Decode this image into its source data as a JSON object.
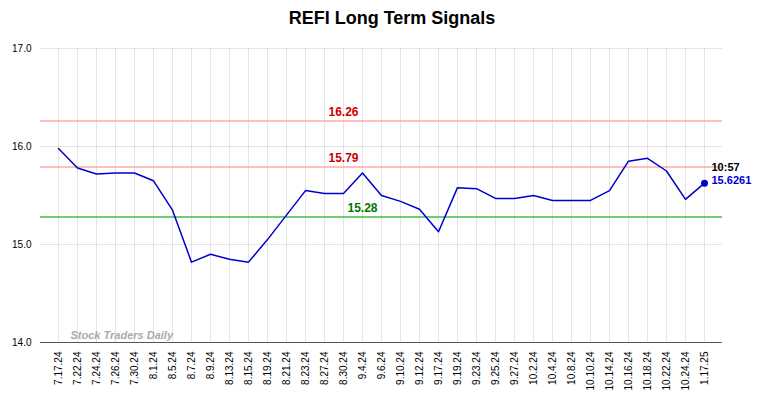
{
  "chart_data": {
    "type": "line",
    "title": "REFI Long Term Signals",
    "categories": [
      "7.17.24",
      "7.22.24",
      "7.24.24",
      "7.26.24",
      "7.30.24",
      "8.1.24",
      "8.5.24",
      "8.7.24",
      "8.9.24",
      "8.13.24",
      "8.15.24",
      "8.19.24",
      "8.21.24",
      "8.23.24",
      "8.27.24",
      "8.30.24",
      "9.4.24",
      "9.6.24",
      "9.10.24",
      "9.12.24",
      "9.17.24",
      "9.19.24",
      "9.23.24",
      "9.25.24",
      "9.27.24",
      "10.2.24",
      "10.4.24",
      "10.8.24",
      "10.10.24",
      "10.14.24",
      "10.16.24",
      "10.18.24",
      "10.22.24",
      "10.24.24",
      "1.17.25"
    ],
    "values": [
      15.98,
      15.78,
      15.72,
      15.73,
      15.73,
      15.65,
      15.35,
      14.82,
      14.9,
      14.85,
      14.82,
      15.05,
      15.3,
      15.55,
      15.52,
      15.52,
      15.73,
      15.5,
      15.44,
      15.36,
      15.13,
      15.58,
      15.57,
      15.47,
      15.47,
      15.5,
      15.45,
      15.45,
      15.45,
      15.55,
      15.85,
      15.88,
      15.75,
      15.46,
      15.6261
    ],
    "color": "#0000cc",
    "last_point_color": "#0000cc",
    "hlines": [
      {
        "value": 16.26,
        "color": "#ffaaaa",
        "label_color": "#cc0000"
      },
      {
        "value": 15.79,
        "color": "#ffaaaa",
        "label_color": "#cc0000"
      },
      {
        "value": 15.28,
        "color": "#44bb44",
        "label_color": "#007700"
      }
    ],
    "annotations": [
      {
        "text": "10:57",
        "color": "#000000"
      },
      {
        "text": "15.6261",
        "color": "#0000cc"
      }
    ],
    "watermark": "Stock Traders Daily",
    "watermark_color": "#aaaaaa",
    "ylim": [
      14.0,
      17.0
    ],
    "yticks": [
      14,
      15,
      16,
      17
    ],
    "grid": true
  }
}
